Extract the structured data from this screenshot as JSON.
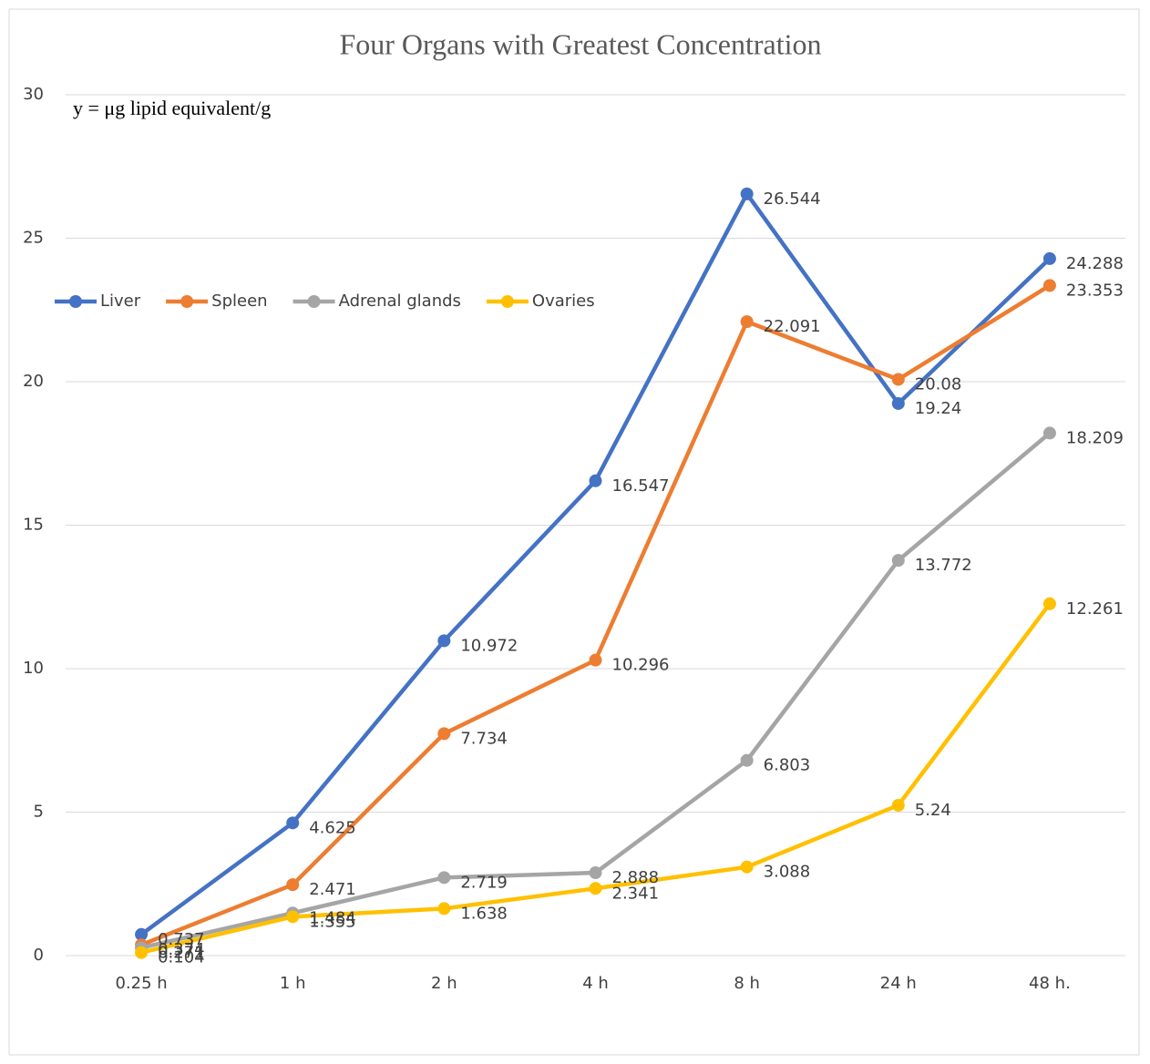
{
  "chart_data": {
    "type": "line",
    "title": "Four Organs with Greatest Concentration",
    "annotation": "y = μg lipid equivalent/g",
    "categories": [
      "0.25 h",
      "1 h",
      "2 h",
      "4 h",
      "8 h",
      "24 h",
      "48 h."
    ],
    "series": [
      {
        "name": "Liver",
        "color": "#4472c4",
        "values": [
          0.737,
          4.625,
          10.972,
          16.547,
          26.544,
          19.24,
          24.288
        ]
      },
      {
        "name": "Spleen",
        "color": "#ed7d31",
        "values": [
          0.374,
          2.471,
          7.734,
          10.296,
          22.091,
          20.08,
          23.353
        ]
      },
      {
        "name": "Adrenal glands",
        "color": "#a5a5a5",
        "values": [
          0.271,
          1.484,
          2.719,
          2.888,
          6.803,
          13.772,
          18.209
        ]
      },
      {
        "name": "Ovaries",
        "color": "#ffc000",
        "values": [
          0.104,
          1.355,
          1.638,
          2.341,
          3.088,
          5.24,
          12.261
        ]
      }
    ],
    "ylim": [
      0,
      30
    ],
    "yticks": [
      0,
      5,
      10,
      15,
      20,
      25,
      30
    ],
    "grid": true,
    "legend": "left"
  }
}
